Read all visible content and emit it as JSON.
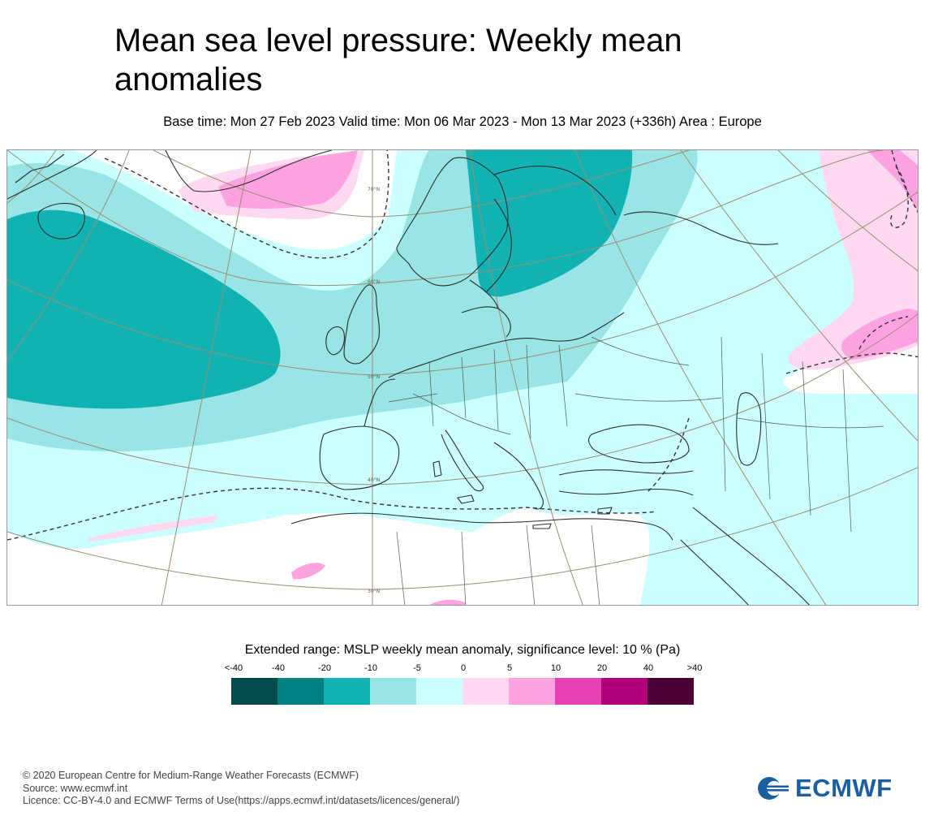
{
  "header": {
    "title": "Mean sea level pressure: Weekly mean anomalies",
    "subtitle": "Base time: Mon 27 Feb 2023 Valid time: Mon 06 Mar 2023 - Mon 13 Mar 2023 (+336h) Area : Europe"
  },
  "map": {
    "latitude_labels": [
      "70°N",
      "60°N",
      "50°N",
      "40°N",
      "30°N"
    ]
  },
  "legend": {
    "title": "Extended range: MSLP weekly mean anomaly, significance level: 10 % (Pa)",
    "labels": [
      "<-40",
      "-40",
      "-20",
      "-10",
      "-5",
      "0",
      "5",
      "10",
      "20",
      "40",
      ">40"
    ],
    "colors": [
      "#004c4c",
      "#008080",
      "#11b2b2",
      "#99e5e5",
      "#ccffff",
      "#ffd9f2",
      "#ffa3e0",
      "#e641b2",
      "#b0007a",
      "#4d0033"
    ]
  },
  "footer": {
    "line1": "© 2020 European Centre for Medium-Range Weather Forecasts (ECMWF)",
    "line2": "Source: www.ecmwf.int",
    "line3": "Licence: CC-BY-4.0 and ECMWF Terms of Use(https://apps.ecmwf.int/datasets/licences/general/)"
  },
  "logo": {
    "text": "ECMWF",
    "color": "#1b5fa0"
  }
}
